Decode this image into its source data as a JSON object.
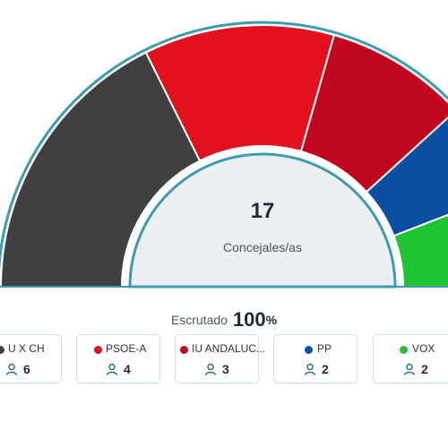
{
  "chart_data": {
    "type": "hemicycle",
    "total_seats": 17,
    "total_label": "Concejales/as",
    "segments": [
      {
        "name": "U X CH",
        "seats": 6,
        "color": "#404040"
      },
      {
        "name": "PSOE-A",
        "seats": 4,
        "color": "#e3101d"
      },
      {
        "name": "IU ANDALUC...",
        "seats": 3,
        "color": "#c1071f"
      },
      {
        "name": "PP",
        "seats": 2,
        "color": "#0a4fa1"
      },
      {
        "name": "VOX",
        "seats": 2,
        "color": "#1ec431"
      }
    ],
    "outline_color": "#3d9bb0"
  },
  "scrutiny": {
    "label": "Escrutado",
    "value": "100",
    "unit": "%"
  },
  "icons": {
    "seat": "person-icon"
  }
}
